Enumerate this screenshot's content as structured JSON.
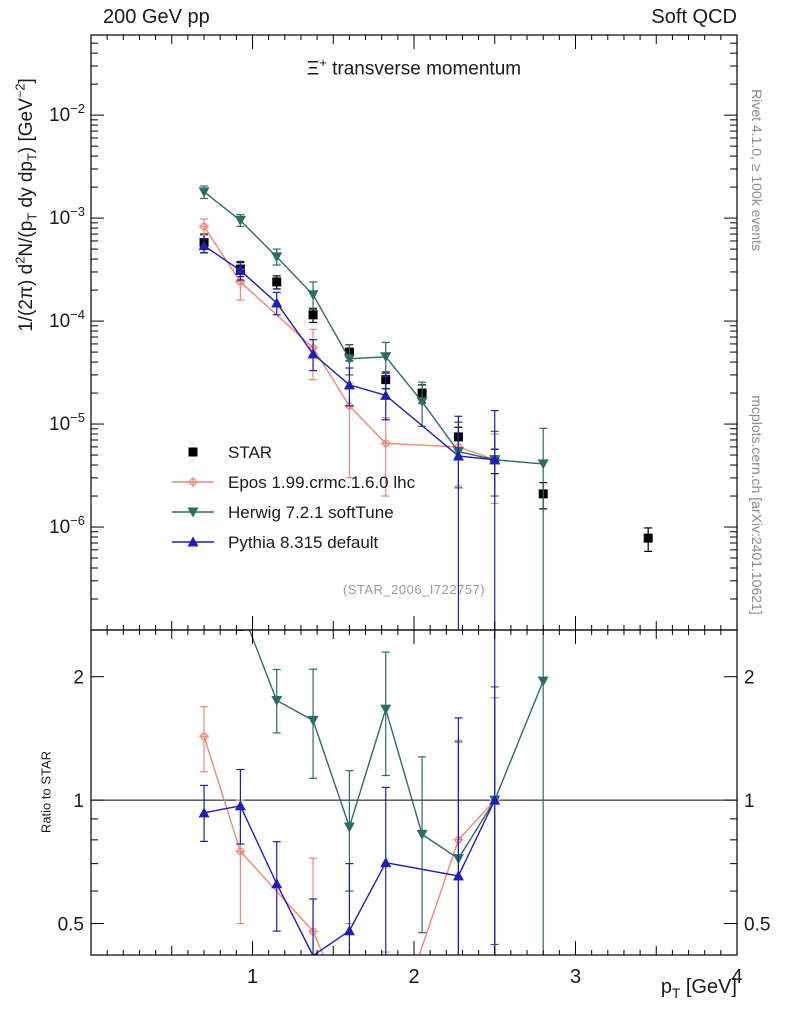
{
  "header": {
    "left": "200 GeV pp",
    "right": "Soft QCD"
  },
  "watermark": "(STAR_2006_I722757)",
  "side_notes": {
    "rivet": "Rivet 4.1.0, ≥ 100k events",
    "mcplots": "mcplots.cern.ch [arXiv:2401.10621]"
  },
  "rich": {
    "title": [
      {
        "t": "Ξ"
      },
      {
        "sup": "+"
      },
      {
        "t": " transverse momentum"
      }
    ],
    "x_label": [
      {
        "t": "p"
      },
      {
        "sub": "T"
      },
      {
        "t": " [GeV]"
      }
    ],
    "y_main_label": [
      {
        "t": "1/(2π)  d"
      },
      {
        "sup": "2"
      },
      {
        "t": "N/(p"
      },
      {
        "sub": "T"
      },
      {
        "t": " dy dp"
      },
      {
        "sub": "T"
      },
      {
        "t": ")  [GeV"
      },
      {
        "sup": "−2"
      },
      {
        "t": "]"
      }
    ],
    "y_ratio_label": [
      {
        "t": "Ratio to STAR"
      }
    ]
  },
  "chart_data": {
    "type": "line",
    "title": "Ξ⁺ transverse momentum",
    "x_label": "p_T [GeV]",
    "y_label": "1/(2π) d²N/(p_T dy dp_T) [GeV^-2]",
    "x_range": [
      0,
      4
    ],
    "x_major_ticks": [
      1,
      2,
      3,
      4
    ],
    "main_panel": {
      "y_scale": "log",
      "y_range": [
        1e-07,
        0.06
      ],
      "y_tick_exponents": [
        -6,
        -5,
        -4,
        -3,
        -2
      ]
    },
    "ratio_panel": {
      "y_scale": "log",
      "y_label": "Ratio to STAR",
      "y_range": [
        0.419,
        2.6
      ],
      "y_ticks": [
        0.5,
        1,
        2
      ],
      "y_minor_ticks": [
        0.6,
        0.7,
        0.8,
        0.9
      ],
      "reference_line": 1
    },
    "legend_position": "inside-left-middle",
    "series": [
      {
        "name": "STAR",
        "role": "data",
        "color": "#000000",
        "marker": "square",
        "draw_line": false,
        "x": [
          0.7,
          0.925,
          1.15,
          1.375,
          1.6,
          1.825,
          2.05,
          2.275,
          2.5,
          2.8,
          3.45
        ],
        "y": [
          0.00058,
          0.00032,
          0.00024,
          0.000115,
          5e-05,
          2.7e-05,
          2e-05,
          7.5e-06,
          4.5e-06,
          2.1e-06,
          7.8e-07
        ],
        "err_lo": [
          0.00012,
          5e-05,
          3.5e-05,
          1.8e-05,
          9e-06,
          5e-06,
          4e-06,
          1.8e-06,
          1.2e-06,
          6e-07,
          2e-07
        ],
        "err_hi": [
          0.00012,
          5e-05,
          3.5e-05,
          1.8e-05,
          9e-06,
          5e-06,
          4e-06,
          1.8e-06,
          1.2e-06,
          6e-07,
          2e-07
        ]
      },
      {
        "name": "Epos 1.99.crmc.1.6.0 lhc",
        "role": "mc",
        "color": "#ee8779",
        "marker": "cross",
        "draw_line": true,
        "x": [
          0.7,
          0.925,
          1.375,
          1.6,
          1.825,
          2.275,
          2.5
        ],
        "y": [
          0.00083,
          0.00024,
          5.5e-05,
          1.5e-05,
          6.5e-06,
          6e-06,
          4.5e-06
        ],
        "err_lo": [
          0.00015,
          8e-05,
          2.8e-05,
          1.2e-05,
          4.5e-06,
          3.5e-06,
          2.8e-06
        ],
        "err_hi": [
          0.00015,
          8e-05,
          2.8e-05,
          1e-05,
          5e-06,
          4.5e-06,
          3.5e-06
        ]
      },
      {
        "name": "Herwig 7.2.1 softTune",
        "role": "mc",
        "color": "#2e6b66",
        "marker": "triangle-down",
        "draw_line": true,
        "x": [
          0.7,
          0.925,
          1.15,
          1.375,
          1.6,
          1.825,
          2.05,
          2.275,
          2.5,
          2.8
        ],
        "y": [
          0.0018,
          0.00095,
          0.00042,
          0.00018,
          4.3e-05,
          4.5e-05,
          1.65e-05,
          5.4e-06,
          4.5e-06,
          4.1e-06
        ],
        "err_lo": [
          0.00025,
          0.00012,
          7e-05,
          5e-05,
          1.3e-05,
          1.4e-05,
          7e-06,
          3e-06,
          2.5e-06,
          4.05e-06
        ],
        "err_hi": [
          0.00025,
          0.00013,
          8e-05,
          6e-05,
          1.6e-05,
          1.7e-05,
          9e-06,
          5e-06,
          4e-06,
          5e-06
        ]
      },
      {
        "name": "Pythia 8.315 default",
        "role": "mc",
        "color": "#1e1eb4",
        "marker": "triangle-up",
        "draw_line": true,
        "x": [
          0.7,
          0.925,
          1.15,
          1.375,
          1.6,
          1.825,
          2.275,
          2.5
        ],
        "y": [
          0.00054,
          0.00031,
          0.00015,
          4.8e-05,
          2.4e-05,
          1.9e-05,
          4.9e-06,
          4.5e-06
        ],
        "err_lo": [
          8e-05,
          6e-05,
          3.5e-05,
          1.5e-05,
          9e-06,
          8e-06,
          4.85e-06,
          4.45e-06
        ],
        "err_hi": [
          9e-05,
          7e-05,
          4e-05,
          1.8e-05,
          1.1e-05,
          1e-05,
          7e-06,
          9e-06
        ]
      }
    ]
  }
}
